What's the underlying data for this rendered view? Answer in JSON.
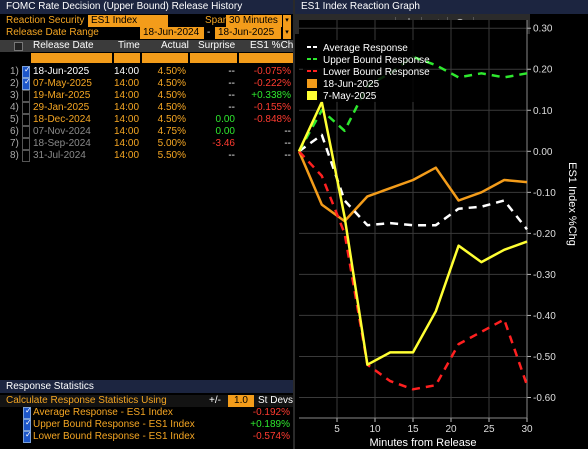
{
  "left_panel": {
    "title": "FOMC Rate Decision (Upper Bound) Release History",
    "reaction_security_label": "Reaction Security",
    "reaction_security_value": "ES1 Index",
    "span_label": "Span",
    "span_value": "30 Minutes",
    "date_range_label": "Release Date Range",
    "date_range_start": "18-Jun-2024",
    "date_range_sep": "-",
    "date_range_end": "18-Jun-2025",
    "columns": [
      "Release Date",
      "Time",
      "Actual",
      "Surprise",
      "ES1 %Chg"
    ],
    "rows": [
      {
        "num": "1)",
        "checked": true,
        "date": "18-Jun-2025",
        "time": "14:00",
        "actual": "4.50%",
        "surprise": "--",
        "chg": "-0.075%",
        "date_color": "#ffffff",
        "time_color": "#ffffff",
        "actual_color": "#f5a623",
        "surprise_color": "#ffffff",
        "chg_color": "#ff3b30"
      },
      {
        "num": "2)",
        "checked": true,
        "date": "07-May-2025",
        "time": "14:00",
        "actual": "4.50%",
        "surprise": "--",
        "chg": "-0.222%",
        "date_color": "#f5a623",
        "time_color": "#f5a623",
        "actual_color": "#f5a623",
        "surprise_color": "#ffffff",
        "chg_color": "#ff3b30"
      },
      {
        "num": "3)",
        "checked": false,
        "date": "19-Mar-2025",
        "time": "14:00",
        "actual": "4.50%",
        "surprise": "--",
        "chg": "+0.338%",
        "date_color": "#f5a623",
        "time_color": "#f5a623",
        "actual_color": "#f5a623",
        "surprise_color": "#ffffff",
        "chg_color": "#2ee82e"
      },
      {
        "num": "4)",
        "checked": false,
        "date": "29-Jan-2025",
        "time": "14:00",
        "actual": "4.50%",
        "surprise": "--",
        "chg": "-0.155%",
        "date_color": "#f5a623",
        "time_color": "#f5a623",
        "actual_color": "#f5a623",
        "surprise_color": "#ffffff",
        "chg_color": "#ff3b30"
      },
      {
        "num": "5)",
        "checked": false,
        "date": "18-Dec-2024",
        "time": "14:00",
        "actual": "4.50%",
        "surprise": "0.00",
        "chg": "-0.848%",
        "date_color": "#f5a623",
        "time_color": "#f5a623",
        "actual_color": "#f5a623",
        "surprise_color": "#2ee82e",
        "chg_color": "#ff3b30"
      },
      {
        "num": "6)",
        "checked": false,
        "date": "07-Nov-2024",
        "time": "14:00",
        "actual": "4.75%",
        "surprise": "0.00",
        "chg": "--",
        "date_color": "#8a8a8a",
        "time_color": "#f5a623",
        "actual_color": "#f5a623",
        "surprise_color": "#2ee82e",
        "chg_color": "#ffffff"
      },
      {
        "num": "7)",
        "checked": false,
        "date": "18-Sep-2024",
        "time": "14:00",
        "actual": "5.00%",
        "surprise": "-3.46",
        "chg": "--",
        "date_color": "#8a8a8a",
        "time_color": "#f5a623",
        "actual_color": "#f5a623",
        "surprise_color": "#ff3b30",
        "chg_color": "#ffffff"
      },
      {
        "num": "8)",
        "checked": false,
        "date": "31-Jul-2024",
        "time": "14:00",
        "actual": "5.50%",
        "surprise": "--",
        "chg": "--",
        "date_color": "#8a8a8a",
        "time_color": "#f5a623",
        "actual_color": "#f5a623",
        "surprise_color": "#ffffff",
        "chg_color": "#ffffff"
      }
    ]
  },
  "stats": {
    "title": "Response Statistics",
    "calc_label": "Calculate Response Statistics Using",
    "plusminus": "+/-",
    "std_value": "1.0",
    "std_label": "St Devs",
    "rows": [
      {
        "label": "Average Response - ES1 Index",
        "value": "-0.192%",
        "color": "#ff3b30"
      },
      {
        "label": "Upper Bound Response - ES1 Index",
        "value": "+0.189%",
        "color": "#2ee82e"
      },
      {
        "label": "Lower Bound Response - ES1 Index",
        "value": "-0.574%",
        "color": "#ff3b30"
      }
    ]
  },
  "right_panel": {
    "title": "ES1 Index Reaction Graph",
    "toolbar_icons": [
      "crosshair-icon",
      "pencil-icon",
      "zoom-icon"
    ]
  },
  "chart_data": {
    "type": "line",
    "xlabel": "Minutes from Release",
    "ylabel": "ES1 Index %Chg",
    "xlim": [
      0,
      30
    ],
    "ylim": [
      -0.65,
      0.32
    ],
    "xticks": [
      5,
      10,
      15,
      20,
      25,
      30
    ],
    "yticks": [
      0.3,
      0.2,
      0.1,
      0.0,
      -0.1,
      -0.2,
      -0.3,
      -0.4,
      -0.5,
      -0.6
    ],
    "ytick_labels": [
      "0.30",
      "0.20",
      "0.10",
      "0.00",
      "-0.10",
      "-0.20",
      "-0.30",
      "-0.40",
      "-0.50",
      "-0.60"
    ],
    "xtick_labels": [
      "5",
      "10",
      "15",
      "20",
      "25",
      "30"
    ],
    "legend_position": "top-left",
    "series": [
      {
        "name": "Average Response",
        "color": "#ffffff",
        "dash": true,
        "x": [
          0,
          3,
          6,
          9,
          12,
          15,
          18,
          21,
          24,
          27,
          30
        ],
        "y": [
          0.0,
          0.04,
          -0.12,
          -0.18,
          -0.175,
          -0.18,
          -0.18,
          -0.14,
          -0.135,
          -0.12,
          -0.19
        ]
      },
      {
        "name": "Upper Bound Response",
        "color": "#2ee82e",
        "dash": true,
        "x": [
          0,
          3,
          6,
          9,
          12,
          15,
          18,
          21,
          24,
          27,
          30
        ],
        "y": [
          0.0,
          0.1,
          0.05,
          0.16,
          0.19,
          0.23,
          0.21,
          0.18,
          0.19,
          0.18,
          0.19
        ]
      },
      {
        "name": "Lower Bound Response",
        "color": "#ff2020",
        "dash": true,
        "x": [
          0,
          3,
          6,
          9,
          12,
          15,
          18,
          21,
          24,
          27,
          30
        ],
        "y": [
          0.0,
          -0.06,
          -0.2,
          -0.52,
          -0.56,
          -0.58,
          -0.57,
          -0.47,
          -0.44,
          -0.41,
          -0.57
        ]
      },
      {
        "name": "18-Jun-2025",
        "color": "#f39c1a",
        "dash": false,
        "x": [
          0,
          3,
          6,
          9,
          12,
          15,
          18,
          21,
          24,
          27,
          30
        ],
        "y": [
          0.0,
          -0.13,
          -0.17,
          -0.11,
          -0.09,
          -0.07,
          -0.04,
          -0.12,
          -0.1,
          -0.07,
          -0.075
        ]
      },
      {
        "name": "7-May-2025",
        "color": "#ffff33",
        "dash": false,
        "x": [
          0,
          3,
          6,
          9,
          12,
          15,
          18,
          21,
          24,
          27,
          30
        ],
        "y": [
          0.0,
          0.12,
          -0.16,
          -0.52,
          -0.49,
          -0.49,
          -0.39,
          -0.23,
          -0.27,
          -0.24,
          -0.22
        ]
      }
    ]
  }
}
